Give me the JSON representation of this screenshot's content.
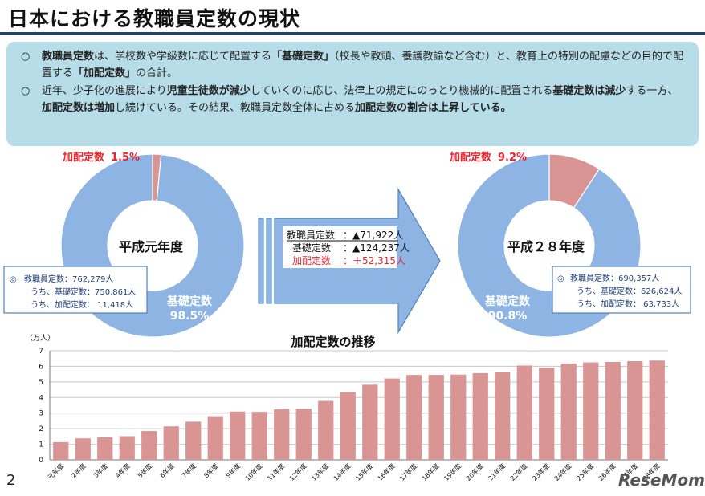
{
  "title": "日本における教職員定数の現状",
  "summary": [
    {
      "segments": [
        {
          "text": "教職員定数",
          "bold": true
        },
        {
          "text": "は、学校数や学級数に応じて配置する",
          "bold": false
        },
        {
          "text": "「基礎定数」",
          "bold": true
        },
        {
          "text": "（校長や教頭、養護教諭など含む）と、教育上の特別の配慮などの目的で配置する",
          "bold": false
        },
        {
          "text": "「加配定数」",
          "bold": true
        },
        {
          "text": "の合計。",
          "bold": false
        }
      ]
    },
    {
      "segments": [
        {
          "text": "近年、少子化の進展により",
          "bold": false
        },
        {
          "text": "児童生徒数が減少",
          "bold": true
        },
        {
          "text": "していくのに応じ、法律上の規定にのっとり機械的に配置される",
          "bold": false
        },
        {
          "text": "基礎定数は減少",
          "bold": true
        },
        {
          "text": "する一方、",
          "bold": false
        },
        {
          "text": "加配定数は増加",
          "bold": true
        },
        {
          "text": "し続けている。その結果、教職員定数全体に占める",
          "bold": false
        },
        {
          "text": "加配定数の割合は上昇している。",
          "bold": true
        }
      ]
    }
  ],
  "bullet_mark": "○",
  "donut_left": {
    "label": "平成元年度",
    "extra_label": "加配定数",
    "extra_pct": "1.5%",
    "base_label": "基礎定数",
    "base_pct": "98.5%",
    "info": {
      "mark": "◎",
      "line1": "教職員定数：762,279人",
      "line2": "うち、基礎定数：750,861人",
      "line3": "うち、加配定数： 11,418人"
    }
  },
  "donut_right": {
    "label": "平成２８年度",
    "extra_label": "加配定数",
    "extra_pct": "9.2%",
    "base_label": "基礎定数",
    "base_pct": "90.8%",
    "info": {
      "mark": "◎",
      "line1": "教職員定数：690,357人",
      "line2": "うち、基礎定数：626,624人",
      "line3": "うち、加配定数： 63,733人"
    }
  },
  "change": {
    "row1_label": "教職員定数",
    "row1_value": "：▲71,922人",
    "row2_label": "基礎定数",
    "row2_value": "：▲124,237人",
    "row3_label": "加配定数",
    "row3_value": "：＋52,315人"
  },
  "colors": {
    "base": "#8eb4e3",
    "extra": "#d99594",
    "bar": "#d99594",
    "red": "#e8262e",
    "arrow": "#8eb4e3",
    "box_border": "#4f81bd"
  },
  "chart_data": [
    {
      "type": "pie",
      "title": "平成元年度",
      "slices": [
        {
          "name": "加配定数",
          "value": 1.5
        },
        {
          "name": "基礎定数",
          "value": 98.5
        }
      ]
    },
    {
      "type": "pie",
      "title": "平成２８年度",
      "slices": [
        {
          "name": "加配定数",
          "value": 9.2
        },
        {
          "name": "基礎定数",
          "value": 90.8
        }
      ]
    },
    {
      "type": "bar",
      "title": "加配定数の推移",
      "ylabel": "（万人）",
      "ylim": [
        0,
        7
      ],
      "yticks": [
        "0",
        "1",
        "2",
        "3",
        "4",
        "5",
        "6",
        "7"
      ],
      "grid": true,
      "categories": [
        "元年度",
        "2年度",
        "3年度",
        "4年度",
        "5年度",
        "6年度",
        "7年度",
        "8年度",
        "9年度",
        "10年度",
        "11年度",
        "12年度",
        "13年度",
        "14年度",
        "15年度",
        "16年度",
        "17年度",
        "18年度",
        "19年度",
        "20年度",
        "21年度",
        "22年度",
        "23年度",
        "24年度",
        "25年度",
        "26年度",
        "27年度",
        "28年度"
      ],
      "values": [
        1.14,
        1.38,
        1.45,
        1.52,
        1.85,
        2.15,
        2.45,
        2.8,
        3.1,
        3.08,
        3.25,
        3.28,
        3.78,
        4.35,
        4.82,
        5.22,
        5.45,
        5.45,
        5.47,
        5.56,
        5.62,
        6.05,
        5.9,
        6.18,
        6.25,
        6.28,
        6.33,
        6.37
      ]
    }
  ],
  "page_number": "2",
  "brand": "ReseMom"
}
